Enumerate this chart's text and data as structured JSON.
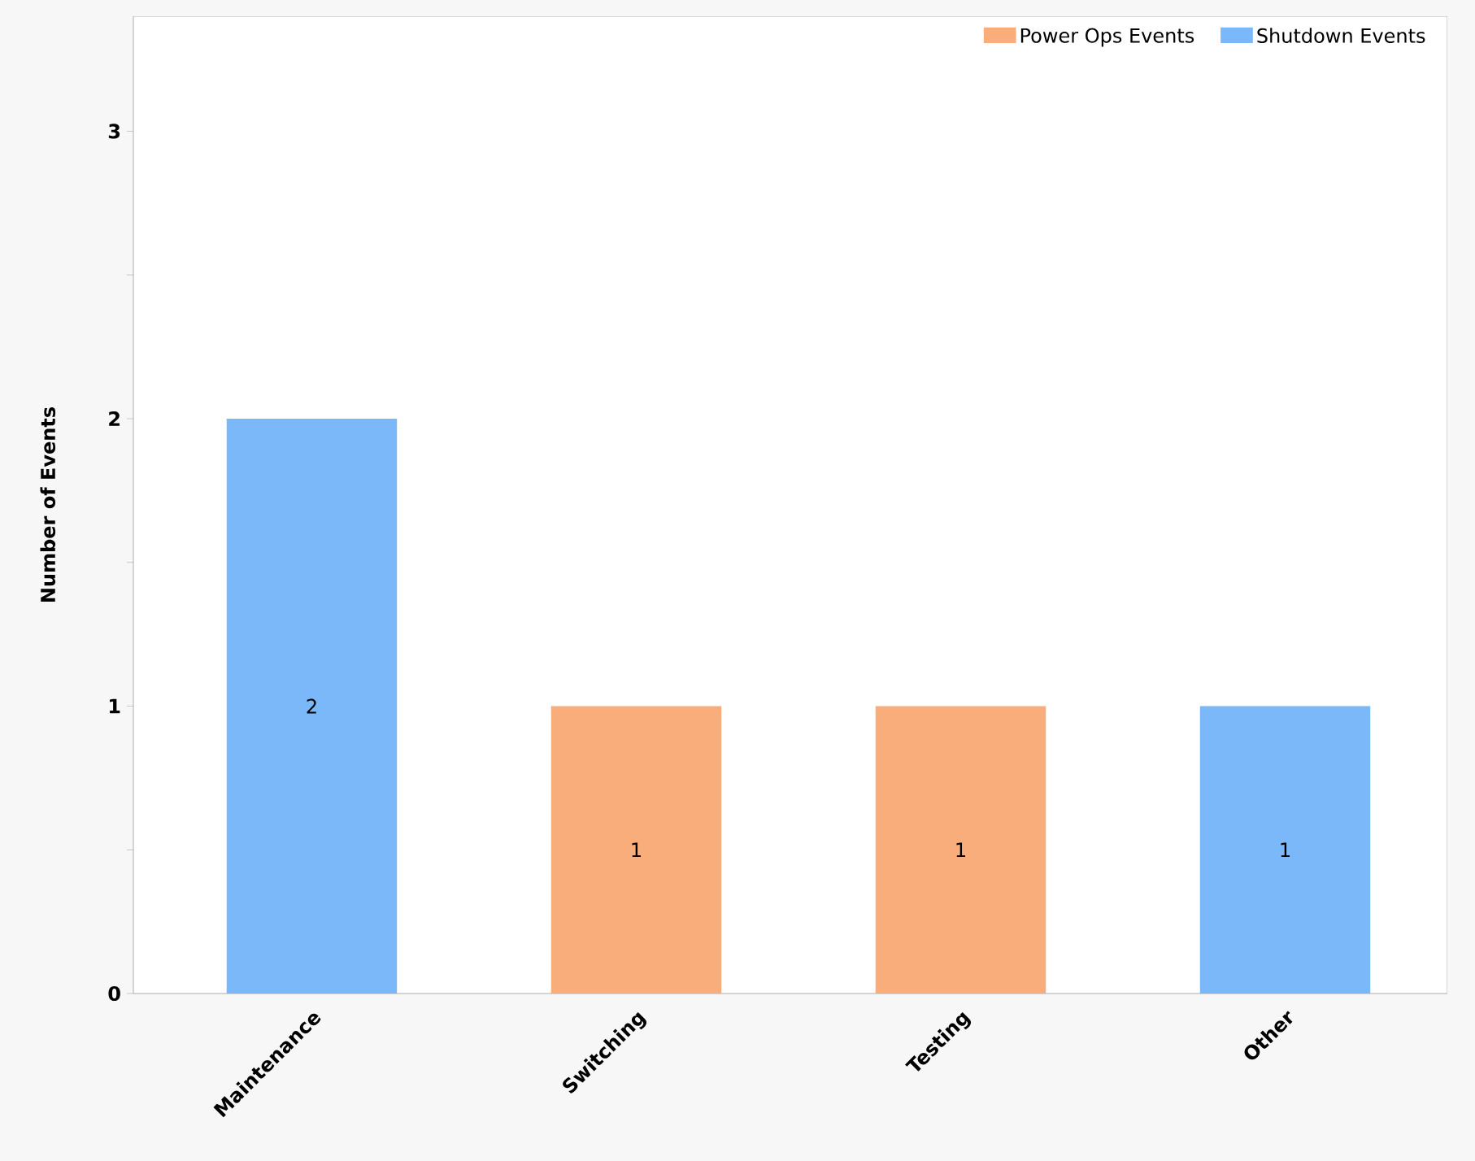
{
  "chart_data": {
    "type": "bar",
    "ylabel": "Number of Events",
    "categories": [
      "Maintenance",
      "Switching",
      "Testing",
      "Other"
    ],
    "series": [
      {
        "name": "Power Ops Events",
        "color": "#f9ad7a",
        "values": [
          null,
          1,
          1,
          null
        ]
      },
      {
        "name": "Shutdown Events",
        "color": "#7ab8f9",
        "values": [
          2,
          null,
          null,
          1
        ]
      }
    ],
    "stacked": true,
    "data_labels": true,
    "ylim": [
      0,
      3.4
    ],
    "yticks": [
      0,
      {
        "value": 0.5,
        "label": null
      },
      1,
      {
        "value": 1.5,
        "label": null
      },
      2,
      {
        "value": 2.5,
        "label": null
      },
      3
    ],
    "grid": false,
    "legend": "top right"
  }
}
